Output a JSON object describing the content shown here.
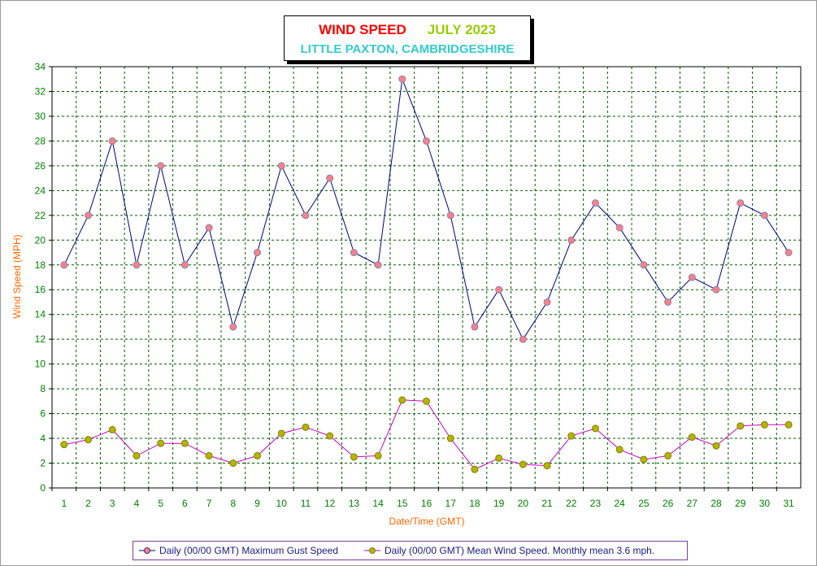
{
  "title": {
    "main": "WIND SPEED",
    "month": "JULY 2023",
    "subtitle": "LITTLE PAXTON, CAMBRIDGESHIRE"
  },
  "colors": {
    "title_main": "#ff0000",
    "title_month": "#99cc00",
    "title_sub": "#33cccc",
    "axis_label": "#ff6600",
    "tick_label": "#008000",
    "grid": "#005a00",
    "gust_line": "#000080",
    "gust_marker": "#ff8080",
    "mean_line": "#cc00cc",
    "mean_marker": "#b5b500"
  },
  "chart_data": {
    "type": "line",
    "xlabel": "Date/Time (GMT)",
    "ylabel": "Wind Speed (MPH)",
    "categories": [
      "1",
      "2",
      "3",
      "4",
      "5",
      "6",
      "7",
      "8",
      "9",
      "10",
      "11",
      "12",
      "13",
      "14",
      "15",
      "16",
      "17",
      "18",
      "19",
      "20",
      "21",
      "22",
      "23",
      "24",
      "25",
      "26",
      "27",
      "28",
      "29",
      "30",
      "31"
    ],
    "ylim": [
      0,
      34
    ],
    "yticks": [
      0,
      2,
      4,
      6,
      8,
      10,
      12,
      14,
      16,
      18,
      20,
      22,
      24,
      26,
      28,
      30,
      32,
      34
    ],
    "grid": true,
    "legend_position": "bottom",
    "series": [
      {
        "name": "Daily (00/00 GMT) Maximum Gust Speed",
        "values": [
          18,
          22,
          28,
          18,
          26,
          18,
          21,
          13,
          19,
          26,
          22,
          25,
          19,
          18,
          33,
          28,
          22,
          13,
          16,
          12,
          15,
          20,
          23,
          21,
          18,
          15,
          17,
          16,
          23,
          22,
          19
        ]
      },
      {
        "name": "Daily (00/00 GMT) Mean Wind Speed. Monthly mean 3.6 mph.",
        "values": [
          3.5,
          3.9,
          4.7,
          2.6,
          3.6,
          3.6,
          2.6,
          2.0,
          2.6,
          4.4,
          4.9,
          4.2,
          2.5,
          2.6,
          7.1,
          7.0,
          4.0,
          1.5,
          2.4,
          1.9,
          1.8,
          4.2,
          4.8,
          3.1,
          2.3,
          2.6,
          4.1,
          3.4,
          5.0,
          5.1,
          5.1
        ]
      }
    ]
  }
}
